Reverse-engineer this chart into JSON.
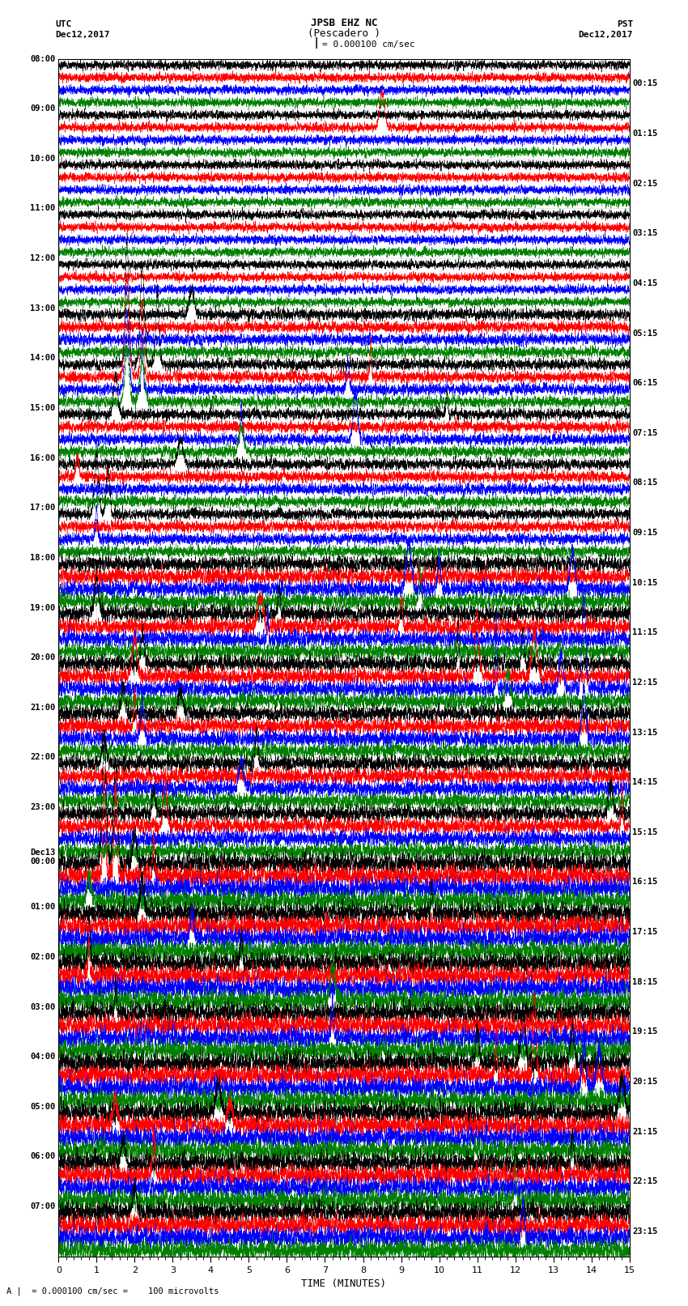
{
  "title_line1": "JPSB EHZ NC",
  "title_line2": "(Pescadero )",
  "scale_label": "= 0.000100 cm/sec",
  "bottom_label": "= 0.000100 cm/sec =    100 microvolts",
  "xlabel": "TIME (MINUTES)",
  "utc_label": "UTC\nDec12,2017",
  "pst_label": "PST\nDec12,2017",
  "left_times": [
    "08:00",
    "09:00",
    "10:00",
    "11:00",
    "12:00",
    "13:00",
    "14:00",
    "15:00",
    "16:00",
    "17:00",
    "18:00",
    "19:00",
    "20:00",
    "21:00",
    "22:00",
    "23:00",
    "Dec13\n00:00",
    "01:00",
    "02:00",
    "03:00",
    "04:00",
    "05:00",
    "06:00",
    "07:00"
  ],
  "right_times": [
    "00:15",
    "01:15",
    "02:15",
    "03:15",
    "04:15",
    "05:15",
    "06:15",
    "07:15",
    "08:15",
    "09:15",
    "10:15",
    "11:15",
    "12:15",
    "13:15",
    "14:15",
    "15:15",
    "16:15",
    "17:15",
    "18:15",
    "19:15",
    "20:15",
    "21:15",
    "22:15",
    "23:15"
  ],
  "colors": [
    "black",
    "red",
    "blue",
    "green"
  ],
  "n_rows": 24,
  "traces_per_row": 4,
  "minutes": 15,
  "figsize": [
    8.5,
    16.13
  ],
  "dpi": 100,
  "bg_color": "white"
}
